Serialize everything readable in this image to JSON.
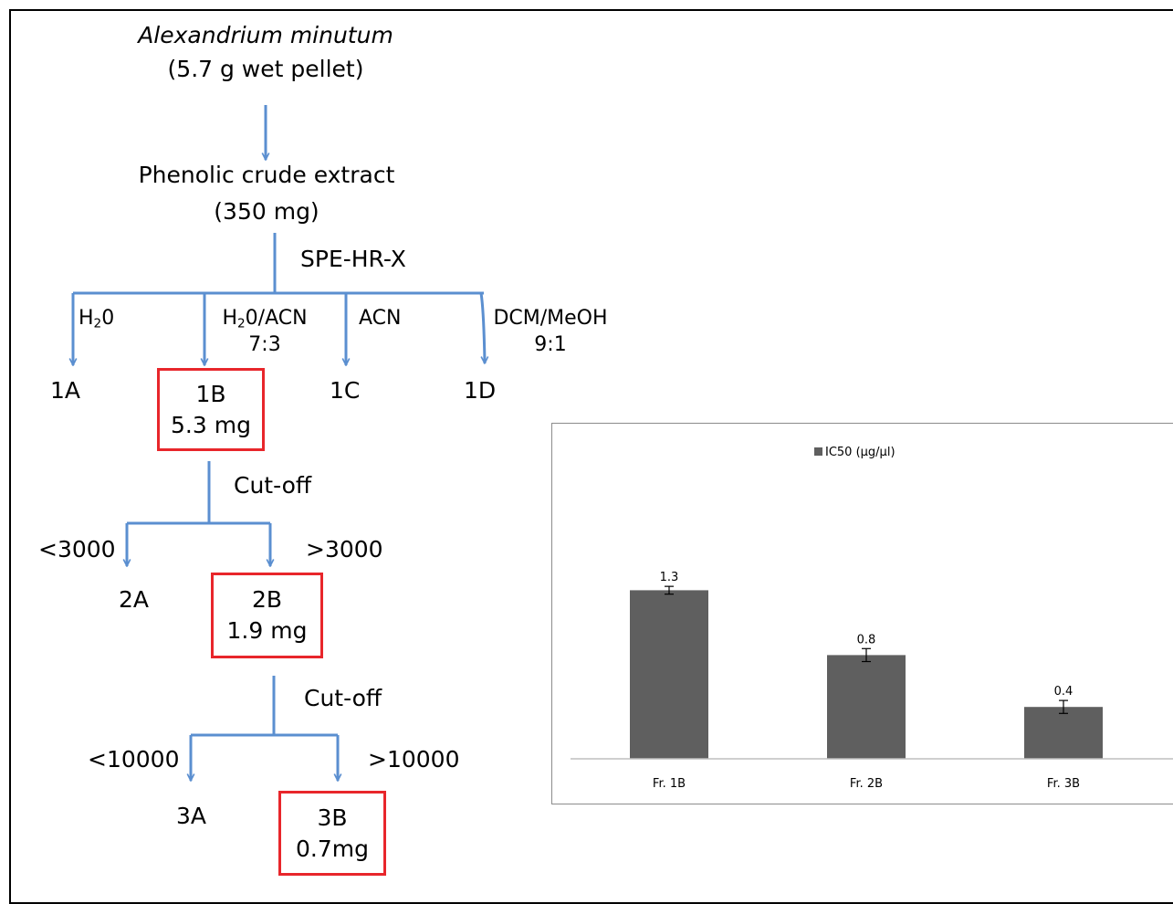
{
  "flow": {
    "source": {
      "organism": "Alexandrium minutum",
      "amount": "(5.7 g wet pellet)"
    },
    "crude": {
      "name": "Phenolic crude extract",
      "amount": "(350 mg)"
    },
    "step1": {
      "method": "SPE-HR-X",
      "solvents": [
        {
          "base": "H",
          "sub": "2",
          "rest": "0",
          "ratio": ""
        },
        {
          "base": "H",
          "sub": "2",
          "rest": "0/ACN",
          "ratio": "7:3"
        },
        {
          "base": "ACN",
          "sub": "",
          "rest": "",
          "ratio": ""
        },
        {
          "base": "DCM/MeOH",
          "sub": "",
          "rest": "",
          "ratio": "9:1"
        }
      ],
      "fractions": [
        "1A",
        "1B",
        "1C",
        "1D"
      ],
      "selected": {
        "label": "1B",
        "mass": "5.3 mg"
      }
    },
    "step2": {
      "method": "Cut-off",
      "left_threshold": "<3000",
      "right_threshold": ">3000",
      "left_fraction": "2A",
      "selected": {
        "label": "2B",
        "mass": "1.9 mg"
      }
    },
    "step3": {
      "method": "Cut-off",
      "left_threshold": "<10000",
      "right_threshold": ">10000",
      "left_fraction": "3A",
      "selected": {
        "label": "3B",
        "mass": "0.7mg"
      }
    },
    "colors": {
      "arrow": "#5b8fd0",
      "highlight_box": "#e8262b"
    }
  },
  "chart_data": {
    "type": "bar",
    "categories": [
      "Fr. 1B",
      "Fr. 2B",
      "Fr. 3B"
    ],
    "series": [
      {
        "name": "IC50 (µg/µl)",
        "values": [
          1.3,
          0.8,
          0.4
        ],
        "error": [
          0.03,
          0.05,
          0.05
        ]
      }
    ],
    "data_labels": [
      "1.3",
      "0.8",
      "0.4"
    ],
    "ylim": [
      0,
      1.5
    ],
    "grid": false,
    "legend": "top-center",
    "bar_color": "#5f5f5f"
  }
}
